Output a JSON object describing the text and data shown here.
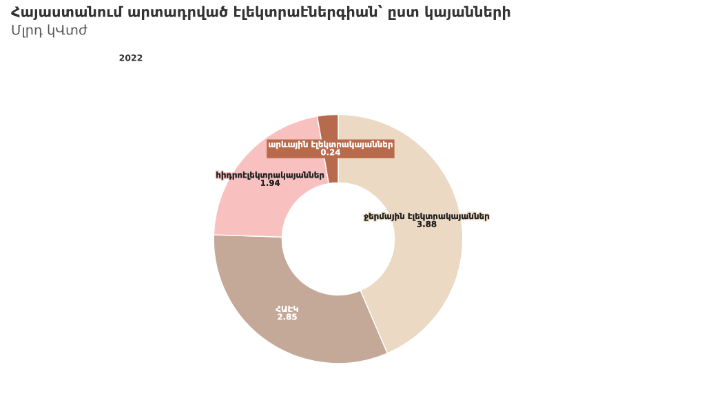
{
  "chart_data": {
    "type": "donut",
    "title": "Հայաստանում արտադրված էլեկտրաէներգիան՝ ըստ կայանների",
    "subtitle": "Մլրդ կՎտժ",
    "annotations": [
      "2022"
    ],
    "categories": [
      "ջերմային էլեկտրակայաններ",
      "ՀԱԷԿ",
      "հիդրոէլեկտրակայաններ",
      "արևային էլեկտրակայաններ"
    ],
    "values": [
      3.88,
      2.85,
      1.94,
      0.24
    ],
    "colors": [
      "#ecd9c4",
      "#c4a998",
      "#f8c1c0",
      "#b86b4c"
    ],
    "data_labels": true,
    "legend": false
  }
}
